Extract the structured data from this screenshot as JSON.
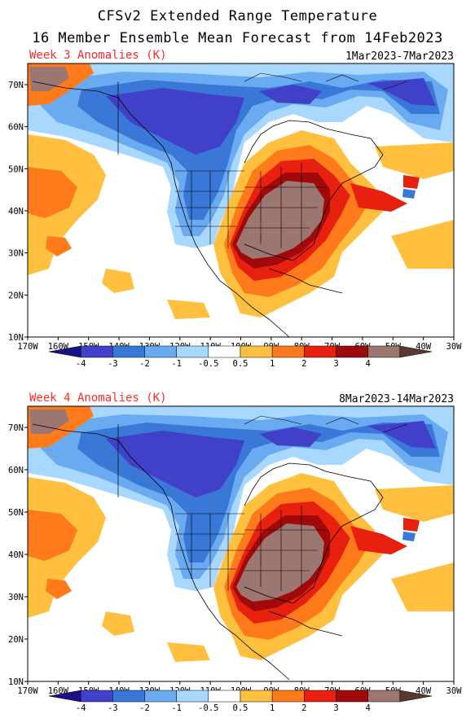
{
  "title_line1": "CFSv2 Extended Range Temperature",
  "title_line2": "16 Member Ensemble Mean Forecast from 14Feb2023",
  "panels": [
    {
      "label": "Week 3 Anomalies (K)",
      "dates": "1Mar2023-7Mar2023",
      "colorbar": {
        "ticks": [
          "-4",
          "-3",
          "-2",
          "-1",
          "-0.5",
          "0.5",
          "1",
          "2",
          "3",
          "4"
        ],
        "colors": [
          "#1c0f8a",
          "#4040c8",
          "#3a78d8",
          "#6aaaf0",
          "#a8d8ff",
          "#ffffff",
          "#ffc040",
          "#ff7a1a",
          "#e82010",
          "#a00a0a",
          "#9c7670",
          "#5a3a30"
        ]
      }
    },
    {
      "label": "Week 4 Anomalies (K)",
      "dates": "8Mar2023-14Mar2023",
      "colorbar": {
        "ticks": [
          "-4",
          "-3",
          "-2",
          "-1",
          "-0.5",
          "0.5",
          "1",
          "2",
          "3",
          "4"
        ],
        "colors": [
          "#1c0f8a",
          "#4040c8",
          "#3a78d8",
          "#6aaaf0",
          "#a8d8ff",
          "#ffffff",
          "#ffc040",
          "#ff7a1a",
          "#e82010",
          "#a00a0a",
          "#9c7670",
          "#5a3a30"
        ]
      }
    }
  ],
  "map_axes": {
    "lon_labels": [
      "170W",
      "160W",
      "150W",
      "140W",
      "130W",
      "120W",
      "110W",
      "100W",
      "90W",
      "80W",
      "70W",
      "60W",
      "50W",
      "40W",
      "30W"
    ],
    "lat_labels": [
      "70N",
      "60N",
      "50N",
      "40N",
      "30N",
      "20N",
      "10N"
    ]
  }
}
